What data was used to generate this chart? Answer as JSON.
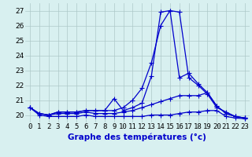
{
  "xlabel": "Graphe des températures (°c)",
  "x": [
    0,
    1,
    2,
    3,
    4,
    5,
    6,
    7,
    8,
    9,
    10,
    11,
    12,
    13,
    14,
    15,
    16,
    17,
    18,
    19,
    20,
    21,
    22,
    23
  ],
  "line1": [
    20.5,
    20.1,
    20.0,
    20.2,
    20.2,
    20.2,
    20.3,
    20.3,
    20.3,
    21.1,
    20.3,
    20.5,
    20.8,
    22.6,
    26.9,
    27.0,
    22.5,
    22.8,
    22.1,
    21.5,
    20.6,
    20.1,
    19.9,
    19.8
  ],
  "line2": [
    20.5,
    20.1,
    20.0,
    20.2,
    20.2,
    20.2,
    20.3,
    20.3,
    20.3,
    20.3,
    20.5,
    21.0,
    21.8,
    23.5,
    26.0,
    27.0,
    26.9,
    22.5,
    22.0,
    21.4,
    20.5,
    20.2,
    19.9,
    19.8
  ],
  "line3": [
    20.5,
    20.1,
    20.0,
    20.1,
    20.1,
    20.1,
    20.2,
    20.1,
    20.1,
    20.1,
    20.2,
    20.3,
    20.5,
    20.7,
    20.9,
    21.1,
    21.3,
    21.3,
    21.3,
    21.5,
    20.6,
    20.1,
    19.9,
    19.8
  ],
  "line4": [
    20.5,
    20.0,
    19.9,
    19.9,
    19.9,
    19.9,
    20.0,
    19.9,
    19.9,
    19.9,
    19.9,
    19.9,
    19.9,
    20.0,
    20.0,
    20.0,
    20.1,
    20.2,
    20.2,
    20.3,
    20.3,
    19.9,
    19.8,
    19.75
  ],
  "ylim": [
    19.5,
    27.5
  ],
  "yticks": [
    20,
    21,
    22,
    23,
    24,
    25,
    26,
    27
  ],
  "line_color": "#0000cc",
  "background_color": "#d8f0f0",
  "grid_color": "#adc8c8",
  "marker": "+",
  "markersize": 4,
  "linewidth": 0.9,
  "tick_fontsize": 6.5,
  "xlabel_fontsize": 7.5
}
